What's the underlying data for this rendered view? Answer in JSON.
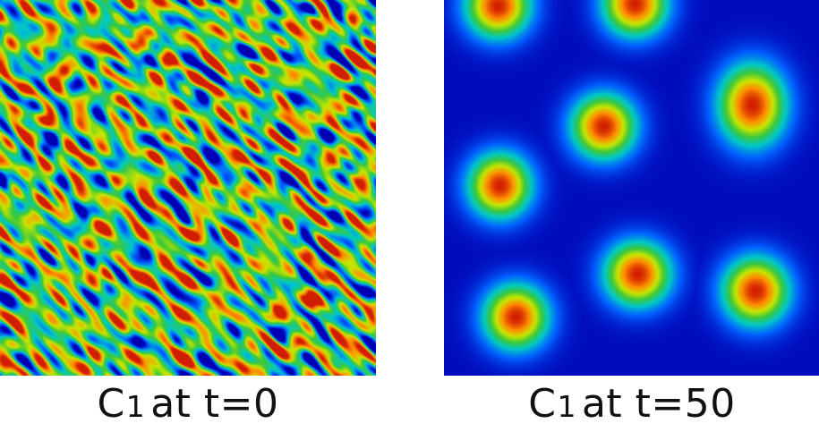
{
  "panels": [
    {
      "caption": {
        "symbol": "C",
        "subscript": "1",
        "rest": "at t=0"
      },
      "field": "random-noise"
    },
    {
      "caption": {
        "symbol": "C",
        "subscript": "1",
        "rest": "at t=50"
      },
      "field": "gaussian-spots"
    }
  ],
  "colormap": [
    "#0000b4",
    "#0060ff",
    "#00c8c8",
    "#3cc83c",
    "#c8e600",
    "#ff8c00",
    "#d21e00"
  ]
}
